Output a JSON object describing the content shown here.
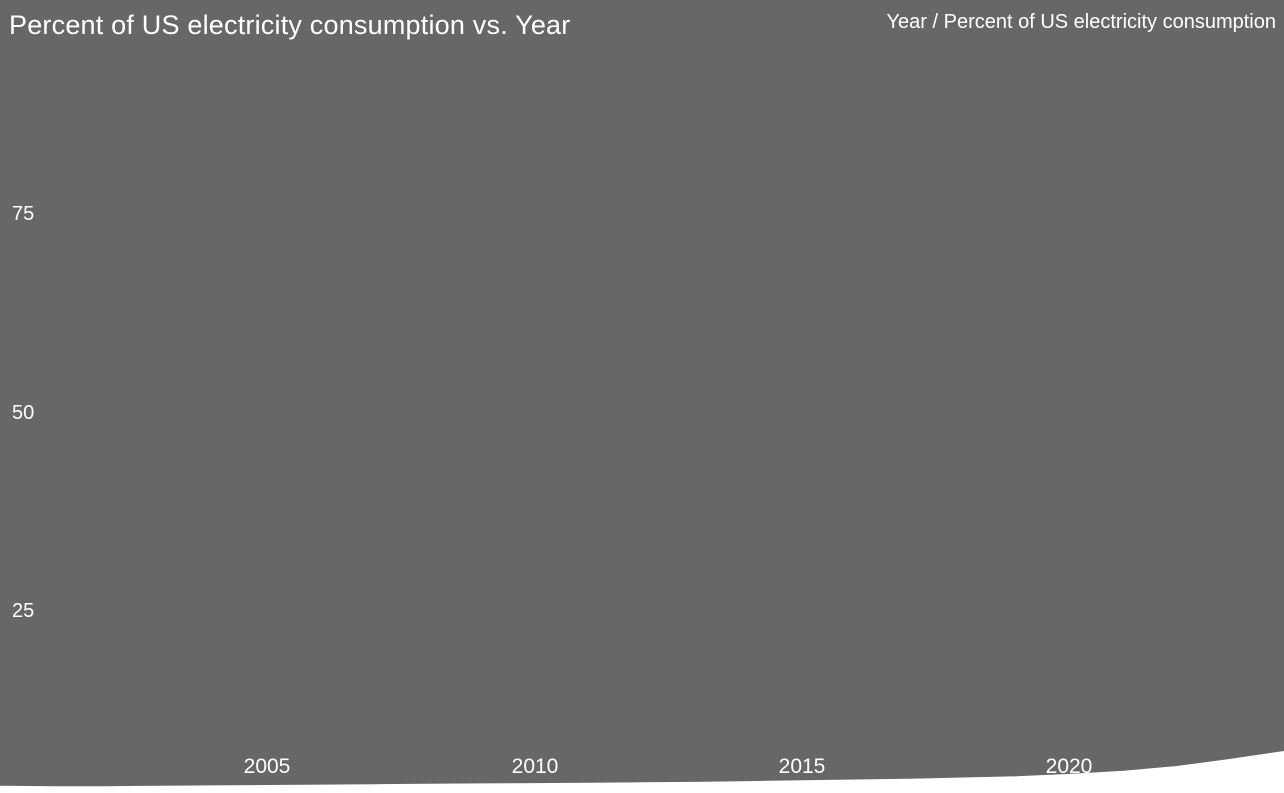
{
  "header": {
    "axis_pair_label": "Year / Percent of US electricity consumption"
  },
  "chart_data": {
    "type": "area",
    "title": "Percent of US electricity consumption vs. Year",
    "xlabel": "Year",
    "ylabel": "Percent of US electricity consumption",
    "x": [
      2000,
      2001,
      2002,
      2003,
      2004,
      2005,
      2006,
      2007,
      2008,
      2009,
      2010,
      2011,
      2012,
      2013,
      2014,
      2015,
      2016,
      2017,
      2018,
      2019,
      2020,
      2021,
      2022,
      2023,
      2024
    ],
    "values": [
      2.8,
      2.75,
      2.75,
      2.8,
      2.85,
      2.9,
      2.95,
      3.0,
      3.05,
      3.1,
      3.15,
      3.2,
      3.25,
      3.3,
      3.4,
      3.5,
      3.6,
      3.7,
      3.85,
      4.0,
      4.3,
      4.7,
      5.3,
      6.2,
      7.2
    ],
    "xticks": [
      "2005",
      "2010",
      "2015",
      "2020"
    ],
    "yticks": [
      "75",
      "50",
      "25"
    ],
    "xlim": [
      2000,
      2024
    ],
    "ylim": [
      0,
      102
    ],
    "grid": false,
    "legend_position": "none",
    "series_color": "#ffffff",
    "background_color": "#676767",
    "text_color": "#ffffff"
  }
}
